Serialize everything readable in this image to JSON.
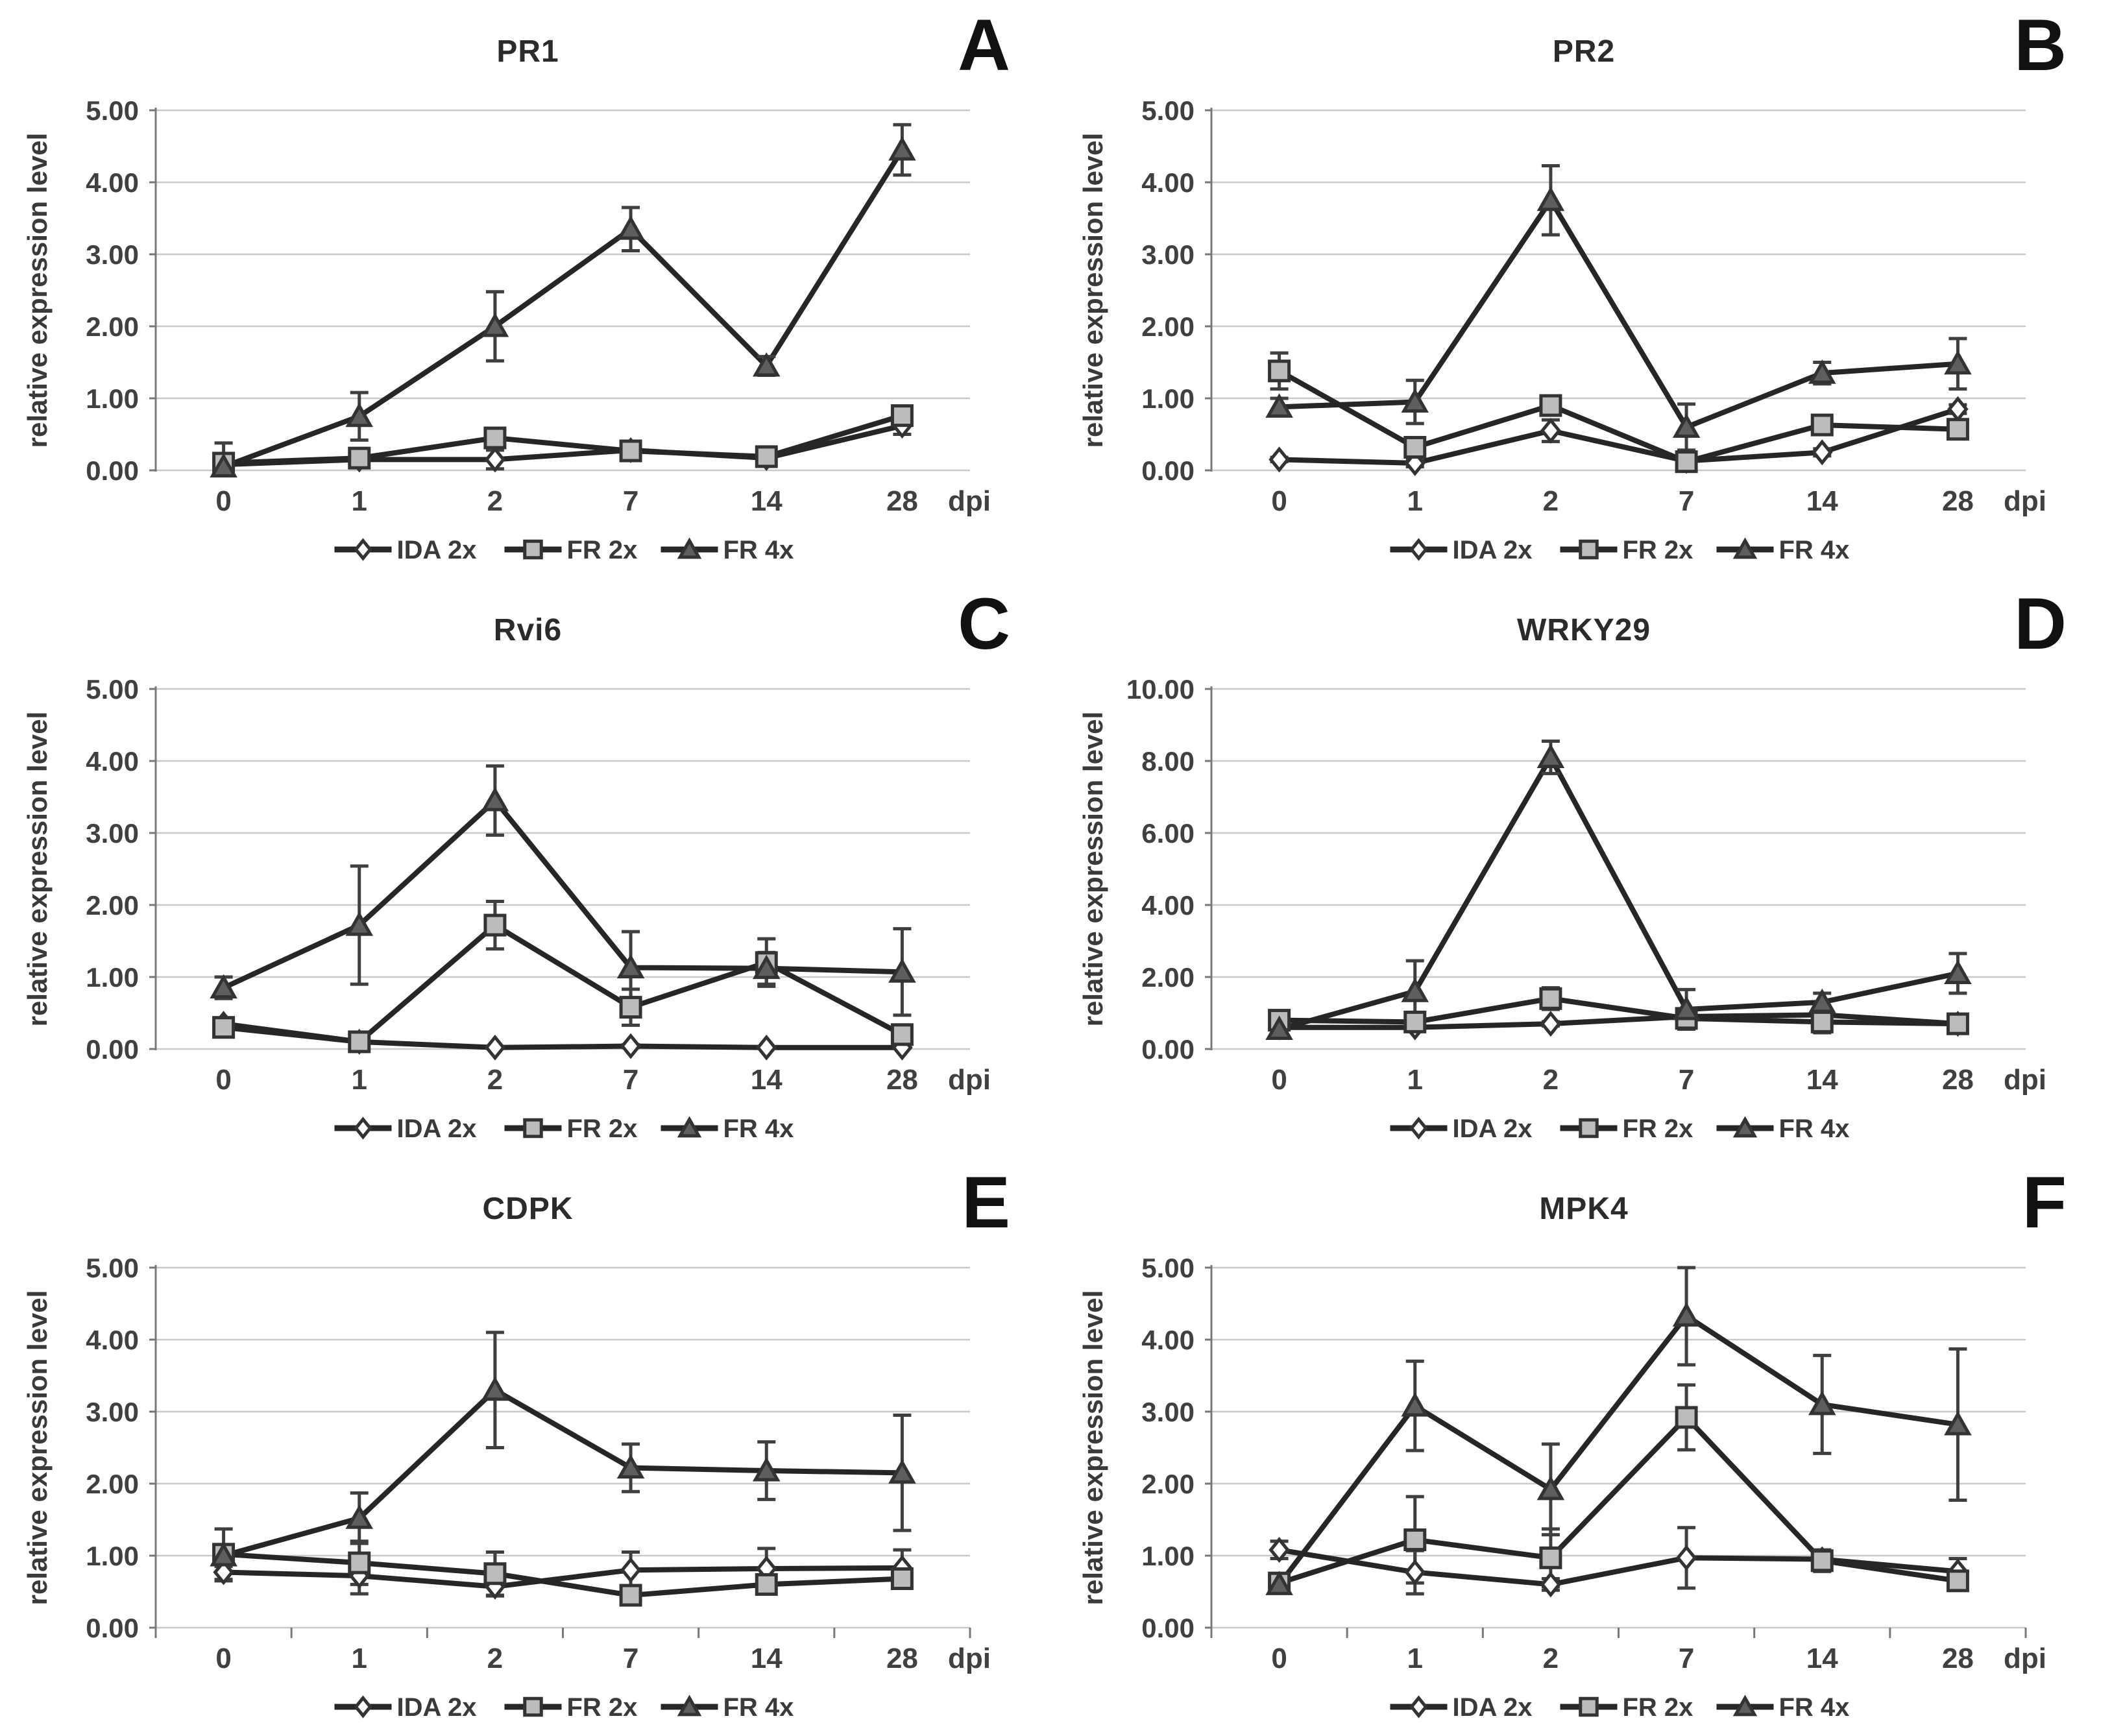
{
  "figure": {
    "x_categories": [
      "0",
      "1",
      "2",
      "7",
      "14",
      "28"
    ],
    "x_unit_label": "dpi",
    "y_axis_label": "relative expression level",
    "legend": [
      {
        "name": "IDA 2x",
        "marker": "diamond"
      },
      {
        "name": "FR 2x",
        "marker": "square"
      },
      {
        "name": "FR 4x",
        "marker": "triangle"
      }
    ],
    "colors": {
      "line": "#262626",
      "grid": "#c9c9c9",
      "axis": "#787878",
      "error_bar": "#3f3f3f",
      "text": "#3a3a3a",
      "tick_text": "#404040",
      "diamond_fill": "#ffffff",
      "square_fill": "#bcbcbc",
      "triangle_fill": "#5e5e5e",
      "marker_stroke": "#333333"
    }
  },
  "chart_data": [
    {
      "type": "line",
      "letter": "A",
      "title": "PR1",
      "xlabel": "dpi",
      "ylabel": "relative expression level",
      "ylim": [
        0,
        5
      ],
      "yticks": [
        "0.00",
        "1.00",
        "2.00",
        "3.00",
        "4.00",
        "5.00"
      ],
      "categories": [
        "0",
        "1",
        "2",
        "7",
        "14",
        "28"
      ],
      "x_boundary_ticks": false,
      "series": [
        {
          "name": "IDA 2x",
          "marker": "diamond",
          "values": [
            0.08,
            0.15,
            0.15,
            0.28,
            0.17,
            0.62
          ],
          "errors": [
            0.05,
            0.1,
            0.13,
            0.05,
            0.08,
            0.12
          ]
        },
        {
          "name": "FR 2x",
          "marker": "square",
          "values": [
            0.1,
            0.17,
            0.45,
            0.27,
            0.19,
            0.76
          ],
          "errors": [
            0.28,
            0.12,
            0.12,
            0.06,
            0.1,
            0.07
          ]
        },
        {
          "name": "FR 4x",
          "marker": "triangle",
          "values": [
            0.05,
            0.75,
            2.0,
            3.35,
            1.45,
            4.45
          ],
          "errors": [
            0.05,
            0.33,
            0.48,
            0.3,
            0.13,
            0.35
          ]
        }
      ]
    },
    {
      "type": "line",
      "letter": "B",
      "title": "PR2",
      "xlabel": "dpi",
      "ylabel": "relative expression level",
      "ylim": [
        0,
        5
      ],
      "yticks": [
        "0.00",
        "1.00",
        "2.00",
        "3.00",
        "4.00",
        "5.00"
      ],
      "categories": [
        "0",
        "1",
        "2",
        "7",
        "14",
        "28"
      ],
      "x_boundary_ticks": false,
      "series": [
        {
          "name": "IDA 2x",
          "marker": "diamond",
          "values": [
            0.15,
            0.1,
            0.55,
            0.13,
            0.25,
            0.85
          ],
          "errors": [
            0.03,
            0.05,
            0.15,
            0.04,
            0.05,
            0.06
          ]
        },
        {
          "name": "FR 2x",
          "marker": "square",
          "values": [
            1.38,
            0.32,
            0.9,
            0.12,
            0.63,
            0.57
          ],
          "errors": [
            0.25,
            0.1,
            0.1,
            0.08,
            0.1,
            0.12
          ]
        },
        {
          "name": "FR 4x",
          "marker": "triangle",
          "values": [
            0.88,
            0.95,
            3.75,
            0.6,
            1.35,
            1.48
          ],
          "errors": [
            0.12,
            0.3,
            0.48,
            0.32,
            0.15,
            0.35
          ]
        }
      ]
    },
    {
      "type": "line",
      "letter": "C",
      "title": "Rvi6",
      "xlabel": "dpi",
      "ylabel": "relative expression level",
      "ylim": [
        0,
        5
      ],
      "yticks": [
        "0.00",
        "1.00",
        "2.00",
        "3.00",
        "4.00",
        "5.00"
      ],
      "categories": [
        "0",
        "1",
        "2",
        "7",
        "14",
        "28"
      ],
      "x_boundary_ticks": false,
      "series": [
        {
          "name": "IDA 2x",
          "marker": "diamond",
          "values": [
            0.35,
            0.1,
            0.02,
            0.04,
            0.02,
            0.02
          ],
          "errors": [
            0.06,
            0.04,
            0.01,
            0.02,
            0.01,
            0.01
          ]
        },
        {
          "name": "FR 2x",
          "marker": "square",
          "values": [
            0.3,
            0.1,
            1.72,
            0.58,
            1.2,
            0.2
          ],
          "errors": [
            0.05,
            0.04,
            0.33,
            0.25,
            0.33,
            0.06
          ]
        },
        {
          "name": "FR 4x",
          "marker": "triangle",
          "values": [
            0.85,
            1.72,
            3.45,
            1.13,
            1.12,
            1.07
          ],
          "errors": [
            0.15,
            0.82,
            0.48,
            0.5,
            0.22,
            0.6
          ]
        }
      ]
    },
    {
      "type": "line",
      "letter": "D",
      "title": "WRKY29",
      "xlabel": "dpi",
      "ylabel": "relative expression level",
      "ylim": [
        0,
        10
      ],
      "yticks": [
        "0.00",
        "2.00",
        "4.00",
        "6.00",
        "8.00",
        "10.00"
      ],
      "categories": [
        "0",
        "1",
        "2",
        "7",
        "14",
        "28"
      ],
      "x_boundary_ticks": false,
      "series": [
        {
          "name": "IDA 2x",
          "marker": "diamond",
          "values": [
            0.6,
            0.6,
            0.7,
            0.9,
            0.95,
            0.7
          ],
          "errors": [
            0.06,
            0.1,
            0.06,
            0.1,
            0.06,
            0.05
          ]
        },
        {
          "name": "FR 2x",
          "marker": "square",
          "values": [
            0.8,
            0.75,
            1.4,
            0.85,
            0.75,
            0.7
          ],
          "errors": [
            0.1,
            0.12,
            0.3,
            0.15,
            0.3,
            0.15
          ]
        },
        {
          "name": "FR 4x",
          "marker": "triangle",
          "values": [
            0.55,
            1.6,
            8.1,
            1.1,
            1.3,
            2.1
          ],
          "errors": [
            0.08,
            0.85,
            0.45,
            0.55,
            0.25,
            0.55
          ]
        }
      ]
    },
    {
      "type": "line",
      "letter": "E",
      "title": "CDPK",
      "xlabel": "dpi",
      "ylabel": "relative expression level",
      "ylim": [
        0,
        5
      ],
      "yticks": [
        "0.00",
        "1.00",
        "2.00",
        "3.00",
        "4.00",
        "5.00"
      ],
      "categories": [
        "0",
        "1",
        "2",
        "7",
        "14",
        "28"
      ],
      "x_boundary_ticks": true,
      "series": [
        {
          "name": "IDA 2x",
          "marker": "diamond",
          "values": [
            0.77,
            0.72,
            0.57,
            0.8,
            0.82,
            0.83
          ],
          "errors": [
            0.12,
            0.25,
            0.13,
            0.25,
            0.28,
            0.25
          ]
        },
        {
          "name": "FR 2x",
          "marker": "square",
          "values": [
            1.02,
            0.9,
            0.75,
            0.45,
            0.6,
            0.68
          ],
          "errors": [
            0.35,
            0.3,
            0.3,
            0.1,
            0.1,
            0.1
          ]
        },
        {
          "name": "FR 4x",
          "marker": "triangle",
          "values": [
            1.0,
            1.52,
            3.3,
            2.22,
            2.18,
            2.15
          ],
          "errors": [
            0.15,
            0.35,
            0.8,
            0.33,
            0.4,
            0.8
          ]
        }
      ]
    },
    {
      "type": "line",
      "letter": "F",
      "title": "MPK4",
      "xlabel": "dpi",
      "ylabel": "relative expression level",
      "ylim": [
        0,
        5
      ],
      "yticks": [
        "0.00",
        "1.00",
        "2.00",
        "3.00",
        "4.00",
        "5.00"
      ],
      "categories": [
        "0",
        "1",
        "2",
        "7",
        "14",
        "28"
      ],
      "x_boundary_ticks": true,
      "series": [
        {
          "name": "IDA 2x",
          "marker": "diamond",
          "values": [
            1.08,
            0.77,
            0.6,
            0.97,
            0.95,
            0.78
          ],
          "errors": [
            0.12,
            0.3,
            0.08,
            0.42,
            0.1,
            0.18
          ]
        },
        {
          "name": "FR 2x",
          "marker": "square",
          "values": [
            0.62,
            1.22,
            0.97,
            2.92,
            0.93,
            0.65
          ],
          "errors": [
            0.05,
            0.6,
            0.4,
            0.45,
            0.15,
            0.12
          ]
        },
        {
          "name": "FR 4x",
          "marker": "triangle",
          "values": [
            0.6,
            3.08,
            1.92,
            4.33,
            3.1,
            2.82
          ],
          "errors": [
            0.08,
            0.62,
            0.63,
            0.68,
            0.68,
            1.05
          ]
        }
      ]
    }
  ]
}
